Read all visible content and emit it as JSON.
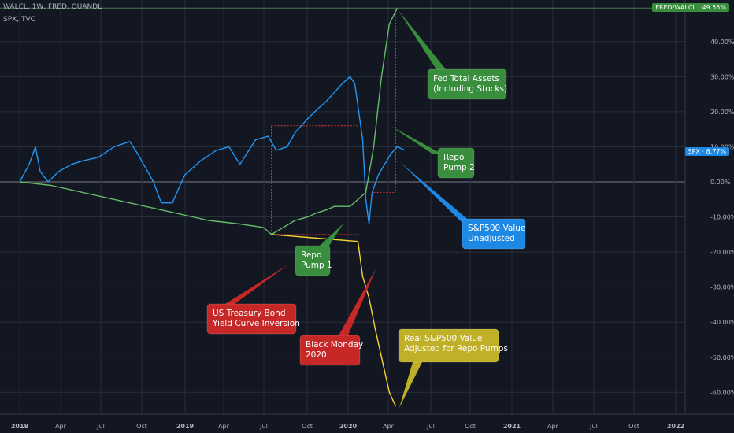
{
  "header": {
    "line1": "WALCL, 1W, FRED, QUANDL",
    "line2": "SPX, TVC"
  },
  "badges": {
    "fred": "FRED/WALCL · 49.55%",
    "spx": "SPX · 8.77%"
  },
  "colors": {
    "background": "#131722",
    "grid": "#2a2e39",
    "spx": "#2196f3",
    "walcl": "#66bb6a",
    "adjusted": "#f6d433",
    "dotted": "#e53935",
    "zero_line": "#787b86",
    "badge_green": "#388e3c",
    "badge_blue": "#1e88e5"
  },
  "chart_data": {
    "type": "line",
    "x_axis_labels": [
      "2018",
      "Apr",
      "Jul",
      "Oct",
      "2019",
      "Apr",
      "Jul",
      "Oct",
      "2020",
      "Apr",
      "Jul",
      "Oct",
      "2021",
      "Apr",
      "Jul",
      "Oct",
      "2022"
    ],
    "y_axis_labels": [
      "40.00%",
      "30.00%",
      "20.00%",
      "10.00%",
      "0.00%",
      "-10.00%",
      "-20.00%",
      "-30.00%",
      "-40.00%",
      "-50.00%",
      "-60.00%"
    ],
    "ylim": [
      -70,
      50
    ],
    "series": [
      {
        "name": "SPX",
        "points": [
          [
            2018.0,
            0
          ],
          [
            2018.06,
            5
          ],
          [
            2018.1,
            10
          ],
          [
            2018.13,
            3
          ],
          [
            2018.18,
            0
          ],
          [
            2018.25,
            3
          ],
          [
            2018.33,
            5
          ],
          [
            2018.4,
            6
          ],
          [
            2018.5,
            7
          ],
          [
            2018.6,
            10
          ],
          [
            2018.7,
            11.5
          ],
          [
            2018.75,
            8
          ],
          [
            2018.8,
            4
          ],
          [
            2018.85,
            0
          ],
          [
            2018.9,
            -6
          ],
          [
            2018.97,
            -6
          ],
          [
            2019.05,
            2
          ],
          [
            2019.15,
            6
          ],
          [
            2019.25,
            9
          ],
          [
            2019.33,
            10
          ],
          [
            2019.4,
            5
          ],
          [
            2019.5,
            12
          ],
          [
            2019.58,
            13
          ],
          [
            2019.63,
            9
          ],
          [
            2019.7,
            10
          ],
          [
            2019.75,
            14
          ],
          [
            2019.83,
            18
          ],
          [
            2019.9,
            21
          ],
          [
            2019.95,
            23
          ],
          [
            2020.05,
            28
          ],
          [
            2020.1,
            30
          ],
          [
            2020.13,
            28
          ],
          [
            2020.18,
            12
          ],
          [
            2020.2,
            -5
          ],
          [
            2020.22,
            -12
          ],
          [
            2020.24,
            -3
          ],
          [
            2020.28,
            2
          ],
          [
            2020.32,
            5
          ],
          [
            2020.36,
            8
          ],
          [
            2020.4,
            10
          ],
          [
            2020.45,
            9
          ]
        ]
      },
      {
        "name": "FRED/WALCL",
        "points": [
          [
            2018.0,
            0
          ],
          [
            2018.2,
            -1
          ],
          [
            2018.4,
            -3
          ],
          [
            2018.6,
            -5
          ],
          [
            2018.8,
            -7
          ],
          [
            2019.0,
            -9
          ],
          [
            2019.2,
            -11
          ],
          [
            2019.4,
            -12
          ],
          [
            2019.55,
            -13
          ],
          [
            2019.6,
            -15
          ],
          [
            2019.75,
            -11
          ],
          [
            2019.83,
            -10
          ],
          [
            2019.88,
            -9
          ],
          [
            2019.95,
            -8
          ],
          [
            2020.0,
            -7
          ],
          [
            2020.1,
            -7
          ],
          [
            2020.15,
            -5
          ],
          [
            2020.2,
            -3
          ],
          [
            2020.25,
            10
          ],
          [
            2020.3,
            30
          ],
          [
            2020.35,
            45
          ],
          [
            2020.4,
            49.55
          ]
        ]
      },
      {
        "name": "Adjusted",
        "points": [
          [
            2019.6,
            -15
          ],
          [
            2020.15,
            -17
          ],
          [
            2020.18,
            -27
          ],
          [
            2020.22,
            -33
          ],
          [
            2020.26,
            -42
          ],
          [
            2020.3,
            -50
          ],
          [
            2020.35,
            -60
          ],
          [
            2020.39,
            -64
          ]
        ]
      }
    ],
    "annotations": [
      "Fed Total Assets\n(Including Stocks)",
      "Repo\nPump 2",
      "S&P500 Value\nUnadjusted",
      "Repo\nPump 1",
      "US Treasury Bond\nYield Curve Inversion",
      "Black Monday\n2020",
      "Real S&P500 Value\nAdjusted for Repo Pumps"
    ]
  },
  "callout_colors": [
    "#388e3c",
    "#388e3c",
    "#1e88e5",
    "#388e3c",
    "#c62828",
    "#c62828",
    "#c0b028"
  ]
}
